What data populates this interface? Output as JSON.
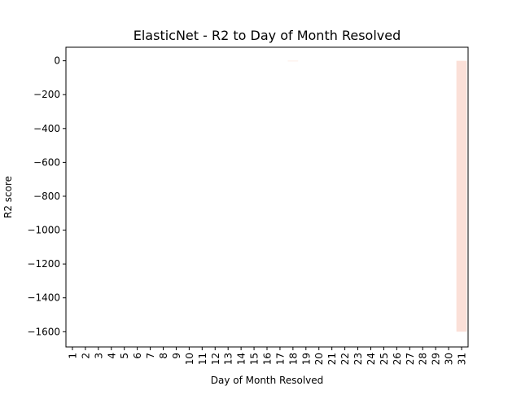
{
  "chart_data": {
    "type": "bar",
    "title": "ElasticNet - R2 to Day of Month Resolved",
    "xlabel": "Day of Month Resolved",
    "ylabel": "R2 score",
    "categories": [
      "1",
      "2",
      "3",
      "4",
      "5",
      "6",
      "7",
      "8",
      "9",
      "10",
      "11",
      "12",
      "13",
      "14",
      "15",
      "16",
      "17",
      "18",
      "19",
      "20",
      "21",
      "22",
      "23",
      "24",
      "25",
      "26",
      "27",
      "28",
      "29",
      "30",
      "31"
    ],
    "values": [
      0.3,
      0.4,
      0.35,
      0.4,
      0.3,
      0.38,
      0.42,
      0.36,
      0.33,
      0.4,
      0.37,
      0.41,
      0.39,
      0.36,
      0.34,
      0.4,
      0.32,
      -2.5,
      0.35,
      0.38,
      0.4,
      0.36,
      0.33,
      0.39,
      0.37,
      0.34,
      0.41,
      0.36,
      0.38,
      0.35,
      -1600
    ],
    "yticks": [
      0,
      -200,
      -400,
      -600,
      -800,
      -1000,
      -1200,
      -1400,
      -1600
    ],
    "ytick_labels": [
      "0",
      "−200",
      "−400",
      "−600",
      "−800",
      "−1000",
      "−1200",
      "−1400",
      "−1600"
    ],
    "ylim": [
      -1690,
      80
    ],
    "grid": false,
    "legend": "none",
    "colors": {
      "negative_bar": "#fbe0d8",
      "positive_bar": "#ffffff",
      "axis": "#000000"
    }
  }
}
